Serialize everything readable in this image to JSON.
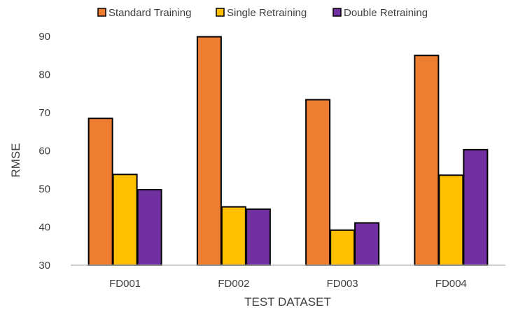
{
  "chart_data": {
    "type": "bar",
    "title": "",
    "xlabel": "TEST DATASET",
    "ylabel": "RMSE",
    "ylim": [
      30,
      90
    ],
    "yticks": [
      30,
      40,
      50,
      60,
      70,
      80,
      90
    ],
    "categories": [
      "FD001",
      "FD002",
      "FD003",
      "FD004"
    ],
    "series": [
      {
        "name": "Standard Training",
        "color": "#ED7D31",
        "values": [
          68.5,
          89.9,
          73.4,
          85.0
        ]
      },
      {
        "name": "Single Retraining",
        "color": "#FFC000",
        "values": [
          53.8,
          45.3,
          39.2,
          53.6
        ]
      },
      {
        "name": "Double Retraining",
        "color": "#7030A0",
        "values": [
          49.8,
          44.7,
          41.1,
          60.3
        ]
      }
    ],
    "legend_position": "top",
    "grid": false
  }
}
